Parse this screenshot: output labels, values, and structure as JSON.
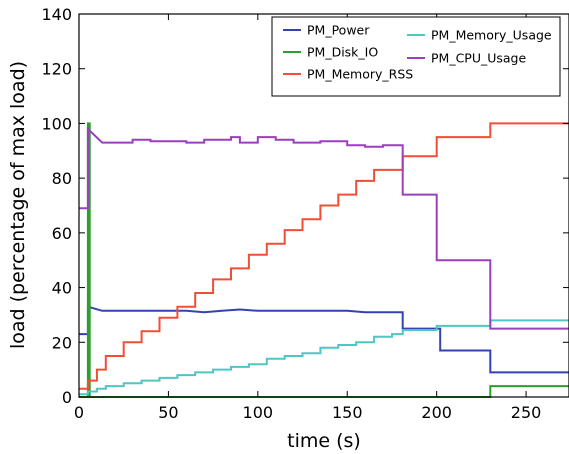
{
  "chart_data": {
    "type": "line",
    "xlabel": "time (s)",
    "ylabel": "load (percentage of max load)",
    "xlim": [
      0,
      274
    ],
    "ylim": [
      0,
      140
    ],
    "x_ticks": [
      0,
      50,
      100,
      150,
      200,
      250
    ],
    "y_ticks": [
      0,
      20,
      40,
      60,
      80,
      100,
      120,
      140
    ],
    "grid": false,
    "legend_placement": "top-right",
    "series": [
      {
        "name": "PM_Power",
        "color": "#3343b4",
        "x": [
          0,
          5,
          5,
          13,
          30,
          40,
          50,
          60,
          70,
          80,
          90,
          100,
          110,
          120,
          130,
          140,
          150,
          160,
          170,
          181,
          181,
          202,
          202,
          230,
          230,
          274
        ],
        "y": [
          23,
          23,
          33,
          31.5,
          31.5,
          31.5,
          31.5,
          31.5,
          31,
          31.5,
          32,
          31.5,
          31.5,
          31.5,
          31.5,
          31.5,
          31.5,
          31,
          31,
          31,
          25,
          25,
          17,
          17,
          9,
          9
        ]
      },
      {
        "name": "PM_Disk_IO",
        "color": "#2ca02c",
        "x": [
          0,
          5,
          5,
          6,
          6,
          230,
          230,
          274
        ],
        "y": [
          0,
          0,
          100,
          100,
          0,
          0,
          4,
          4
        ]
      },
      {
        "name": "PM_Memory_RSS",
        "color": "#f04e35",
        "x": [
          0,
          5,
          5,
          10,
          10,
          15,
          15,
          25,
          25,
          35,
          35,
          45,
          45,
          55,
          55,
          65,
          65,
          75,
          75,
          85,
          85,
          95,
          95,
          105,
          105,
          115,
          115,
          125,
          125,
          135,
          135,
          145,
          145,
          155,
          155,
          165,
          165,
          175,
          175,
          181,
          181,
          200,
          200,
          230,
          230,
          274
        ],
        "y": [
          3,
          3,
          6,
          6,
          10,
          10,
          15,
          15,
          20,
          20,
          24,
          24,
          29,
          29,
          33,
          33,
          38,
          38,
          43,
          43,
          47,
          47,
          52,
          52,
          56,
          56,
          61,
          61,
          65,
          65,
          70,
          70,
          74,
          74,
          79,
          79,
          83,
          83,
          83,
          83,
          88,
          88,
          95,
          95,
          100,
          100
        ]
      },
      {
        "name": "PM_Memory_Usage",
        "color": "#4fc6c3",
        "x": [
          0,
          5,
          5,
          10,
          10,
          15,
          15,
          25,
          25,
          35,
          35,
          45,
          45,
          55,
          55,
          65,
          65,
          75,
          75,
          85,
          85,
          95,
          95,
          105,
          105,
          115,
          115,
          125,
          125,
          135,
          135,
          145,
          145,
          155,
          155,
          165,
          165,
          175,
          175,
          181,
          181,
          200,
          200,
          230,
          230,
          274
        ],
        "y": [
          1,
          1,
          2,
          2,
          3,
          3,
          4,
          4,
          5,
          5,
          6,
          6,
          7,
          7,
          8,
          8,
          9,
          9,
          10,
          10,
          11,
          11,
          12,
          12,
          14,
          14,
          15,
          15,
          16,
          16,
          18,
          18,
          19,
          19,
          20,
          20,
          22,
          22,
          23,
          23,
          24.5,
          24.5,
          26,
          26,
          28,
          28
        ]
      },
      {
        "name": "PM_CPU_Usage",
        "color": "#9b3fbf",
        "x": [
          0,
          5,
          5,
          13,
          13,
          30,
          30,
          40,
          40,
          50,
          50,
          60,
          60,
          70,
          70,
          80,
          80,
          85,
          85,
          90,
          90,
          100,
          100,
          110,
          110,
          115,
          115,
          120,
          120,
          135,
          135,
          150,
          150,
          160,
          160,
          170,
          170,
          181,
          181,
          200,
          200,
          230,
          230,
          274
        ],
        "y": [
          69,
          69,
          98,
          93,
          93,
          93,
          94,
          94,
          93.5,
          93.5,
          93.5,
          93.5,
          93,
          93,
          94,
          94,
          94,
          94,
          95,
          95,
          93,
          93,
          95,
          95,
          94,
          94,
          94,
          94,
          93,
          93,
          93.5,
          93.5,
          92,
          92,
          91.5,
          91.5,
          92,
          92,
          74,
          74,
          50,
          50,
          25,
          25
        ]
      }
    ]
  }
}
